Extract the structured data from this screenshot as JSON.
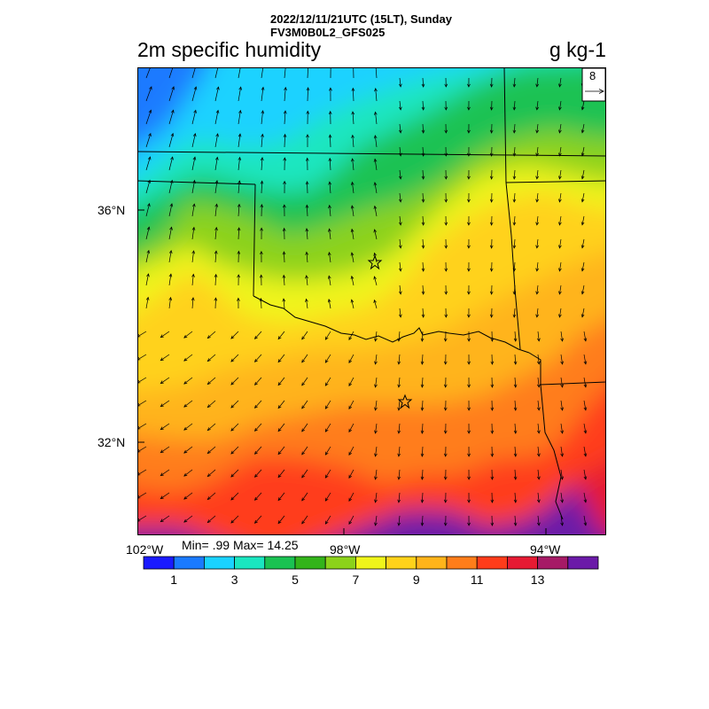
{
  "header": {
    "line1": "2022/12/11/21UTC (15LT), Sunday",
    "line2": "FV3M0B0L2_GFS025"
  },
  "title": "2m specific humidity",
  "units": "g kg-1",
  "vector_ref": {
    "value": "8"
  },
  "axes": {
    "lat_ticks": [
      "36°N",
      "32°N"
    ],
    "lon_ticks": [
      "102°W",
      "98°W",
      "94°W"
    ]
  },
  "stats": "Min= .99 Max= 14.25",
  "colorbar": {
    "colors": [
      "#1a1aff",
      "#1a7aff",
      "#1ad2ff",
      "#1ae6c0",
      "#1ac252",
      "#33b41a",
      "#8cd21a",
      "#f0f51a",
      "#ffd21a",
      "#ffb41a",
      "#ff7d1a",
      "#ff3c1a",
      "#e61a33",
      "#a61a66",
      "#6b1aa8"
    ],
    "labels": [
      "1",
      "3",
      "5",
      "7",
      "9",
      "11",
      "13"
    ]
  },
  "markers": [
    "star",
    "star"
  ]
}
